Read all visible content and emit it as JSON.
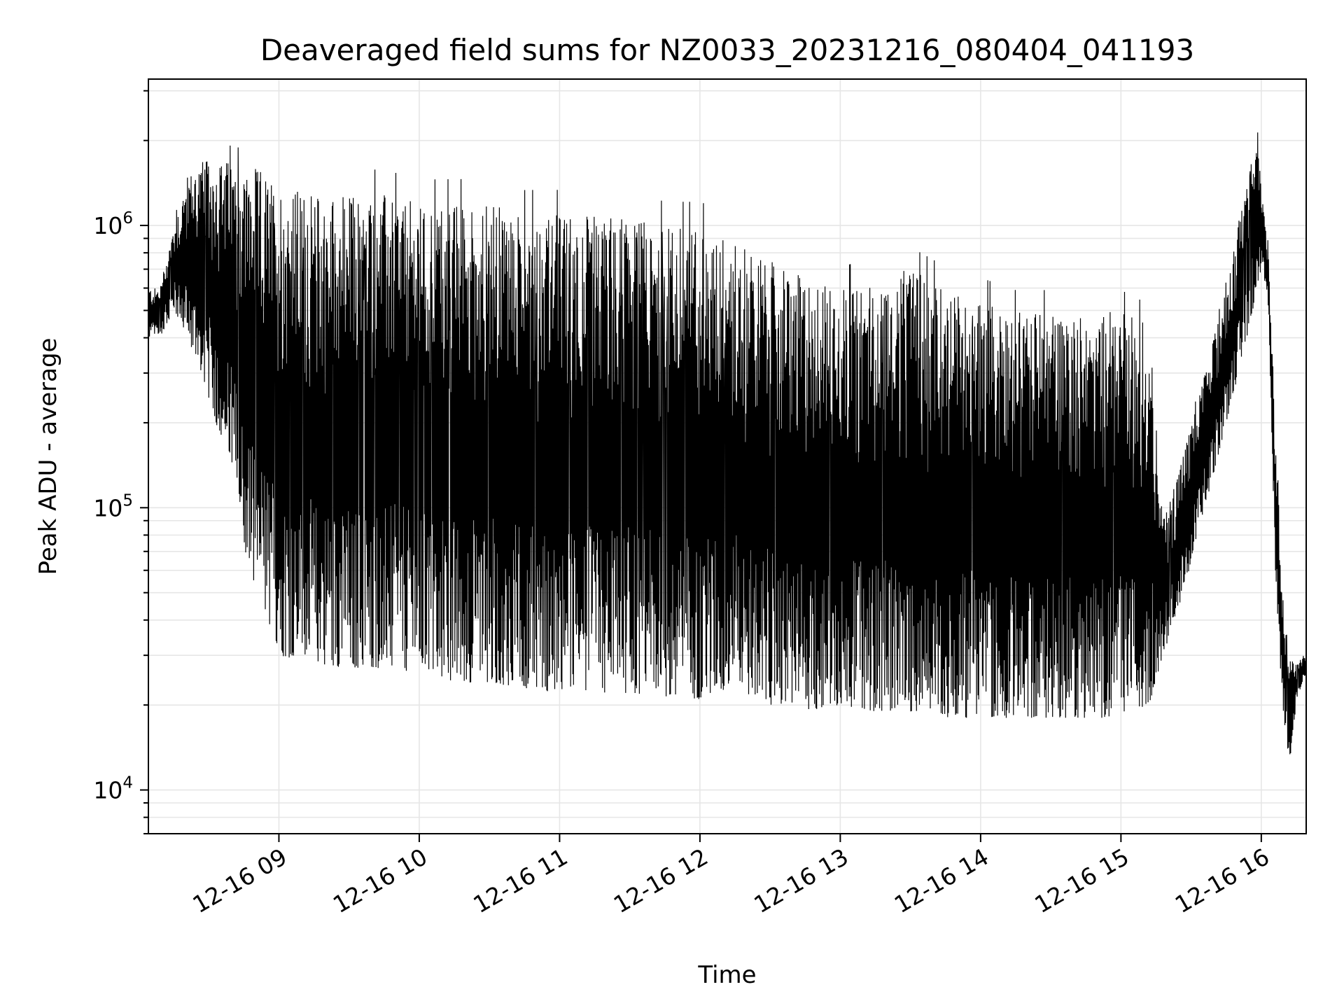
{
  "chart_data": {
    "type": "line",
    "title": "Deaveraged field sums for NZ0033_20231216_080404_041193",
    "xlabel": "Time",
    "ylabel": "Peak ADU - average",
    "yscale": "log",
    "ylim": [
      7000,
      3300000
    ],
    "xlim_hours": [
      8.07,
      16.32
    ],
    "x_tick_labels": [
      "12-16 09",
      "12-16 10",
      "12-16 11",
      "12-16 12",
      "12-16 13",
      "12-16 14",
      "12-16 15",
      "12-16 16"
    ],
    "x_tick_hours": [
      9,
      10,
      11,
      12,
      13,
      14,
      15,
      16
    ],
    "y_tick_values": [
      10000,
      100000,
      1000000
    ],
    "y_tick_labels": [
      {
        "base": "10",
        "exp": "4"
      },
      {
        "base": "10",
        "exp": "5"
      },
      {
        "base": "10",
        "exp": "6"
      }
    ],
    "grid": true,
    "legend": "none",
    "series": [
      {
        "x_hours": [
          8.07,
          8.15,
          8.25,
          8.35,
          8.45,
          8.55,
          8.65,
          8.75,
          8.85,
          9.0,
          9.25,
          9.5,
          9.75,
          10.0,
          10.25,
          10.5,
          10.75,
          11.0,
          11.25,
          11.5,
          11.75,
          12.0,
          12.25,
          12.5,
          12.75,
          13.0,
          13.25,
          13.5,
          13.75,
          14.0,
          14.25,
          14.5,
          14.75,
          15.0,
          15.2,
          15.3,
          15.45,
          15.6,
          15.75,
          15.9,
          15.97,
          16.0,
          16.05,
          16.1,
          16.15,
          16.2,
          16.25,
          16.3
        ],
        "envelope_high": [
          600000,
          600000,
          1000000,
          1500000,
          1700000,
          1700000,
          1700000,
          1600000,
          1600000,
          1400000,
          1300000,
          1300000,
          1300000,
          1200000,
          1200000,
          1200000,
          1100000,
          1100000,
          1100000,
          1100000,
          1000000,
          1000000,
          900000,
          750000,
          650000,
          600000,
          650000,
          700000,
          600000,
          550000,
          500000,
          500000,
          500000,
          500000,
          450000,
          90000,
          160000,
          300000,
          600000,
          1500000,
          2500000,
          1300000,
          900000,
          200000,
          50000,
          30000,
          28000,
          30000
        ],
        "envelope_low": [
          400000,
          400000,
          500000,
          400000,
          300000,
          200000,
          150000,
          70000,
          50000,
          30000,
          28000,
          27000,
          27000,
          26000,
          24000,
          24000,
          23000,
          22000,
          22000,
          22000,
          21000,
          21000,
          22000,
          20000,
          19000,
          20000,
          19000,
          19000,
          18000,
          18000,
          18000,
          18000,
          18000,
          18000,
          20000,
          30000,
          50000,
          100000,
          200000,
          400000,
          600000,
          700000,
          500000,
          60000,
          20000,
          12000,
          20000,
          25000
        ]
      }
    ]
  }
}
